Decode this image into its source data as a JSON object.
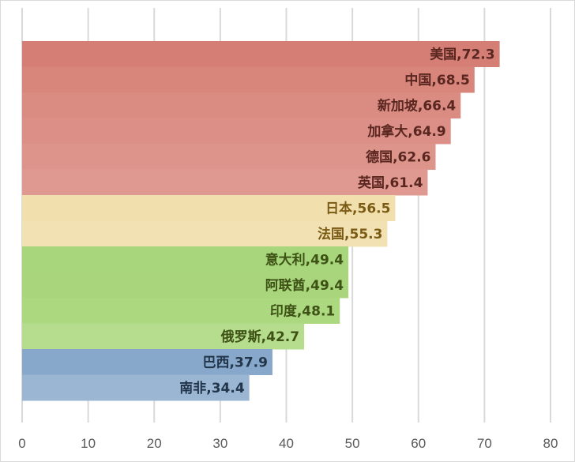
{
  "chart_data": {
    "type": "bar",
    "orientation": "horizontal",
    "title": "",
    "xlabel": "",
    "ylabel": "",
    "xlim": [
      0,
      80
    ],
    "x_ticks": [
      0,
      10,
      20,
      30,
      40,
      50,
      60,
      70,
      80
    ],
    "grid": "vertical",
    "legend": "none",
    "categories": [
      "美国",
      "中国",
      "新加坡",
      "加拿大",
      "德国",
      "英国",
      "日本",
      "法国",
      "意大利",
      "阿联酋",
      "印度",
      "俄罗斯",
      "巴西",
      "南非"
    ],
    "values": [
      72.3,
      68.5,
      66.4,
      64.9,
      62.6,
      61.4,
      56.5,
      55.3,
      49.4,
      49.4,
      48.1,
      42.7,
      37.9,
      34.4
    ],
    "data_labels": [
      "美国,72.3",
      "中国,68.5",
      "新加坡,66.4",
      "加拿大,64.9",
      "德国,62.6",
      "英国,61.4",
      "日本,56.5",
      "法国,55.3",
      "意大利,49.4",
      "阿联酋,49.4",
      "印度,48.1",
      "俄罗斯,42.7",
      "巴西,37.9",
      "南非,34.4"
    ],
    "bar_colors": [
      "#d47e76",
      "#d8857c",
      "#da8c83",
      "#db8f87",
      "#dd948b",
      "#df9990",
      "#f1e0ad",
      "#f2e1b2",
      "#a8d67c",
      "#a9d67d",
      "#acd880",
      "#b5dd8d",
      "#87a8cb",
      "#9ab6d3"
    ],
    "label_colors": [
      "#5a2620",
      "#5a2620",
      "#5a2620",
      "#5a2620",
      "#5a2620",
      "#5a2620",
      "#7a5a14",
      "#7a5a14",
      "#3d5214",
      "#3d5214",
      "#3d5214",
      "#3d5214",
      "#22354a",
      "#22354a"
    ],
    "grid_color": "#d9d9d9"
  }
}
